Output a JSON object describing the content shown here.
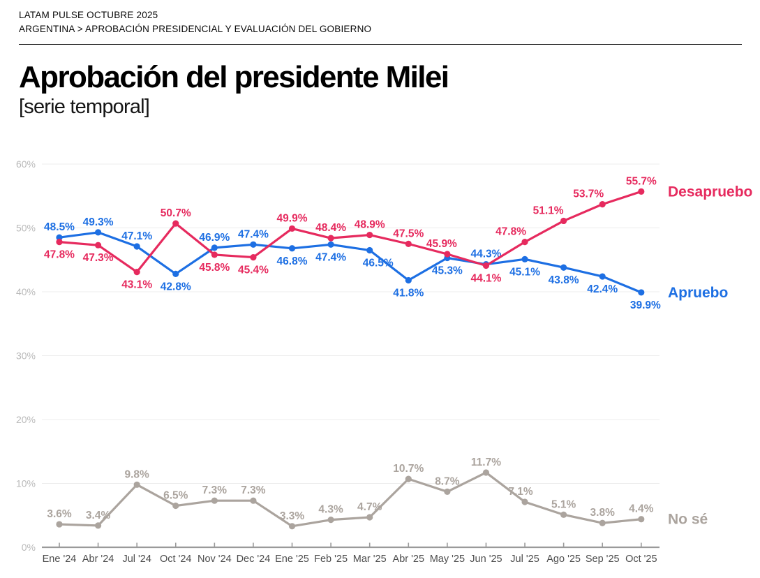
{
  "header": {
    "kicker": "LATAM PULSE OCTUBRE 2025",
    "breadcrumb": "ARGENTINA > APROBACIÓN PRESIDENCIAL Y EVALUACIÓN DEL GOBIERNO"
  },
  "title": "Aprobación del presidente Milei",
  "subtitle": "[serie temporal]",
  "chart_data": {
    "type": "line",
    "title": "Aprobación del presidente Milei [serie temporal]",
    "categories": [
      "Ene '24",
      "Abr '24",
      "Jul '24",
      "Oct '24",
      "Nov '24",
      "Dec '24",
      "Ene '25",
      "Feb '25",
      "Mar '25",
      "Abr '25",
      "May '25",
      "Jun '25",
      "Jul '25",
      "Ago '25",
      "Sep '25",
      "Oct '25"
    ],
    "ylim": [
      0,
      60
    ],
    "ytick_labels": [
      "0%",
      "10%",
      "20%",
      "30%",
      "40%",
      "50%",
      "60%"
    ],
    "grid": true,
    "legend_position": "right-of-last-point",
    "value_suffix": "%",
    "colors": {
      "desapruebo": "#e62a5e",
      "apruebo": "#1d6fe3",
      "no_se": "#aba49e",
      "grid": "#ececec",
      "axis": "#9a9a9a",
      "x_tick_text": "#4d4d4d",
      "y_tick_text": "#b9b9b9"
    },
    "series": [
      {
        "name": "No sé",
        "color": "#aba49e",
        "values": [
          3.6,
          3.4,
          9.8,
          6.5,
          7.3,
          7.3,
          3.3,
          4.3,
          4.7,
          10.7,
          8.7,
          11.7,
          7.1,
          5.1,
          3.8,
          4.4
        ],
        "label_side": [
          "above",
          "above",
          "above",
          "above",
          "above",
          "above",
          "above",
          "above",
          "above",
          "above",
          "above",
          "above",
          "above",
          "above",
          "above",
          "above"
        ]
      },
      {
        "name": "Apruebo",
        "color": "#1d6fe3",
        "values": [
          48.5,
          49.3,
          47.1,
          42.8,
          46.9,
          47.4,
          46.8,
          47.4,
          46.5,
          41.8,
          45.3,
          44.3,
          45.1,
          43.8,
          42.4,
          39.9
        ],
        "label_side": [
          "above",
          "above",
          "above",
          "below",
          "above",
          "above",
          "below",
          "below",
          "below",
          "below",
          "below",
          "above",
          "below",
          "below",
          "below",
          "below"
        ]
      },
      {
        "name": "Desapruebo",
        "color": "#e62a5e",
        "values": [
          47.8,
          47.3,
          43.1,
          50.7,
          45.8,
          45.4,
          49.9,
          48.4,
          48.9,
          47.5,
          45.9,
          44.1,
          47.8,
          51.1,
          53.7,
          55.7
        ],
        "label_side": [
          "below",
          "below",
          "below",
          "above",
          "below",
          "below",
          "above",
          "above",
          "above",
          "above",
          "above",
          "below",
          "above",
          "above",
          "above",
          "above"
        ]
      }
    ]
  }
}
